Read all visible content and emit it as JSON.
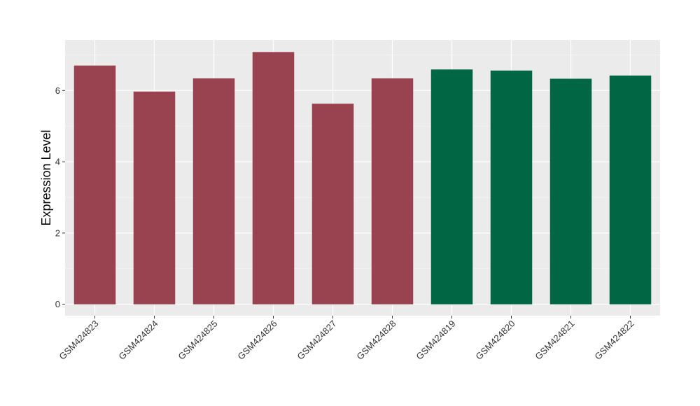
{
  "chart_data": {
    "type": "bar",
    "categories": [
      "GSM424823",
      "GSM424824",
      "GSM424825",
      "GSM424826",
      "GSM424827",
      "GSM424828",
      "GSM424819",
      "GSM424820",
      "GSM424821",
      "GSM424822"
    ],
    "values": [
      6.7,
      5.97,
      6.34,
      7.08,
      5.63,
      6.34,
      6.59,
      6.56,
      6.33,
      6.42
    ],
    "bar_colors": [
      "#994350",
      "#994350",
      "#994350",
      "#994350",
      "#994350",
      "#994350",
      "#006644",
      "#006644",
      "#006644",
      "#006644"
    ],
    "title": "",
    "xlabel": "",
    "ylabel": "Expression Level",
    "ylim": [
      -0.32,
      7.42
    ],
    "yticks": [
      0,
      2,
      4,
      6
    ],
    "grid": true,
    "panel_background": "#ebebeb",
    "grid_color": "#ffffff"
  }
}
